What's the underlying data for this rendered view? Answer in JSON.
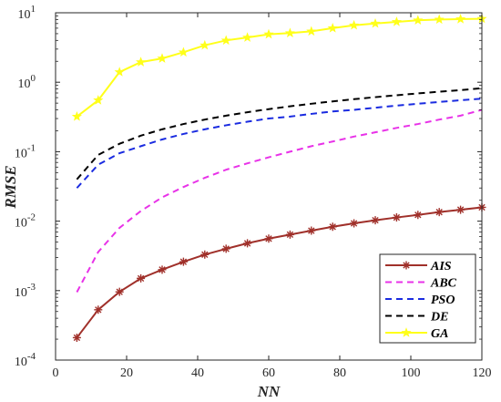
{
  "chart_data": {
    "type": "line",
    "title": "",
    "xlabel": "NN",
    "ylabel": "RMSE",
    "xlim": [
      0,
      120
    ],
    "ylim": [
      0.0001,
      10
    ],
    "yscale": "log",
    "grid": false,
    "legend_position": "bottom-right",
    "xticks": [
      0,
      20,
      40,
      60,
      80,
      100,
      120
    ],
    "yticks": [
      {
        "value": 0.0001,
        "base": "10",
        "exp": "-4"
      },
      {
        "value": 0.001,
        "base": "10",
        "exp": "-3"
      },
      {
        "value": 0.01,
        "base": "10",
        "exp": "-2"
      },
      {
        "value": 0.1,
        "base": "10",
        "exp": "-1"
      },
      {
        "value": 1,
        "base": "10",
        "exp": "0"
      },
      {
        "value": 10,
        "base": "10",
        "exp": "1"
      }
    ],
    "series": [
      {
        "name": "AIS",
        "color": "#a0302a",
        "dash": "solid",
        "marker": "asterisk",
        "x": [
          6,
          12,
          18,
          24,
          30,
          36,
          42,
          48,
          54,
          60,
          66,
          72,
          78,
          84,
          90,
          96,
          102,
          108,
          114,
          120
        ],
        "y": [
          0.00021,
          0.00053,
          0.00096,
          0.0015,
          0.002,
          0.0026,
          0.0033,
          0.004,
          0.0048,
          0.0056,
          0.0064,
          0.0073,
          0.0083,
          0.0093,
          0.0103,
          0.0113,
          0.0123,
          0.0135,
          0.0146,
          0.0158
        ]
      },
      {
        "name": "ABC",
        "color": "#e832e8",
        "dash": "dashed",
        "marker": "none",
        "x": [
          6,
          12,
          18,
          24,
          30,
          36,
          42,
          48,
          54,
          60,
          66,
          72,
          78,
          84,
          90,
          96,
          102,
          108,
          114,
          120
        ],
        "y": [
          0.00095,
          0.0036,
          0.008,
          0.014,
          0.022,
          0.031,
          0.042,
          0.055,
          0.068,
          0.083,
          0.1,
          0.12,
          0.14,
          0.165,
          0.19,
          0.22,
          0.25,
          0.29,
          0.33,
          0.4
        ]
      },
      {
        "name": "PSO",
        "color": "#1a2be0",
        "dash": "dashed",
        "marker": "none",
        "x": [
          6,
          12,
          18,
          24,
          30,
          36,
          42,
          48,
          54,
          60,
          66,
          72,
          78,
          84,
          90,
          96,
          102,
          108,
          114,
          120
        ],
        "y": [
          0.03,
          0.065,
          0.095,
          0.12,
          0.15,
          0.18,
          0.21,
          0.24,
          0.27,
          0.3,
          0.32,
          0.35,
          0.38,
          0.4,
          0.43,
          0.46,
          0.49,
          0.52,
          0.55,
          0.58
        ]
      },
      {
        "name": "DE",
        "color": "#000000",
        "dash": "dashed",
        "marker": "none",
        "x": [
          6,
          12,
          18,
          24,
          30,
          36,
          42,
          48,
          54,
          60,
          66,
          72,
          78,
          84,
          90,
          96,
          102,
          108,
          114,
          120
        ],
        "y": [
          0.04,
          0.09,
          0.13,
          0.17,
          0.21,
          0.25,
          0.29,
          0.33,
          0.37,
          0.41,
          0.45,
          0.49,
          0.53,
          0.57,
          0.61,
          0.65,
          0.69,
          0.73,
          0.77,
          0.82
        ]
      },
      {
        "name": "GA",
        "color": "#ffff1a",
        "dash": "solid",
        "marker": "star",
        "x": [
          6,
          12,
          18,
          24,
          30,
          36,
          42,
          48,
          54,
          60,
          66,
          72,
          78,
          84,
          90,
          96,
          102,
          108,
          114,
          120
        ],
        "y": [
          0.32,
          0.55,
          1.4,
          1.95,
          2.2,
          2.7,
          3.4,
          4.0,
          4.4,
          4.9,
          5.1,
          5.4,
          6.0,
          6.6,
          7.0,
          7.4,
          7.8,
          8.0,
          8.1,
          8.2
        ]
      }
    ]
  }
}
